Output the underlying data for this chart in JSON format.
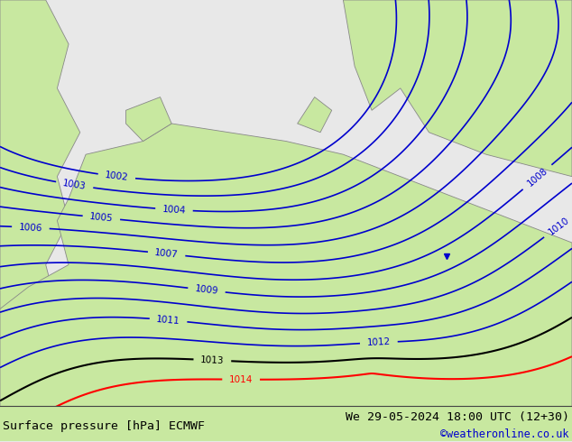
{
  "title_left": "Surface pressure [hPa] ECMWF",
  "title_right": "We 29-05-2024 18:00 UTC (12+30)",
  "copyright": "©weatheronline.co.uk",
  "bg_color": "#e8e8e8",
  "land_color": "#c8e8a0",
  "sea_color": "#e8e8e8",
  "contour_blue_color": "#0000cd",
  "contour_black_color": "#000000",
  "contour_red_color": "#ff0000",
  "border_color": "#888888",
  "text_color_left": "#000000",
  "text_color_right": "#000000",
  "text_color_copy": "#0000cd",
  "bottom_bar_color": "#c8e8a0",
  "font_size_bottom": 9.5,
  "font_size_copy": 8.5
}
